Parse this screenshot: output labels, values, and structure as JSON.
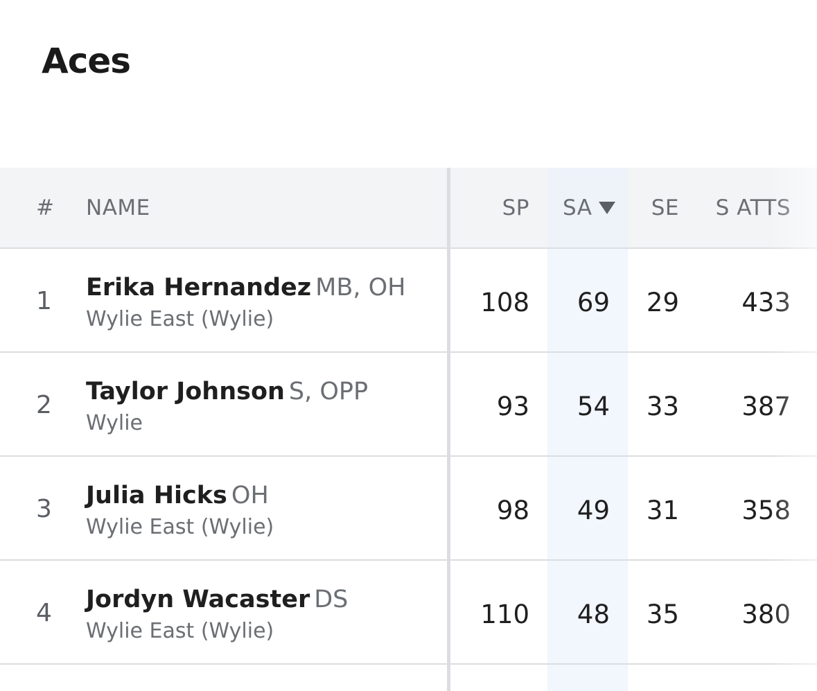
{
  "page": {
    "title": "Aces"
  },
  "table": {
    "columns": {
      "rank": "#",
      "name": "NAME",
      "sp": "SP",
      "sa": "SA",
      "se": "SE",
      "satts": "S ATTS"
    },
    "sorted_by": "SA",
    "sort_direction": "descending",
    "rows": [
      {
        "rank": "1",
        "name": "Erika Hernandez",
        "positions": "MB, OH",
        "school": "Wylie East (Wylie)",
        "sp": "108",
        "sa": "69",
        "se": "29",
        "satts": "433"
      },
      {
        "rank": "2",
        "name": "Taylor Johnson",
        "positions": "S, OPP",
        "school": "Wylie",
        "sp": "93",
        "sa": "54",
        "se": "33",
        "satts": "387"
      },
      {
        "rank": "3",
        "name": "Julia Hicks",
        "positions": "OH",
        "school": "Wylie East (Wylie)",
        "sp": "98",
        "sa": "49",
        "se": "31",
        "satts": "358"
      },
      {
        "rank": "4",
        "name": "Jordyn Wacaster",
        "positions": "DS",
        "school": "Wylie East (Wylie)",
        "sp": "110",
        "sa": "48",
        "se": "35",
        "satts": "380"
      }
    ]
  },
  "colors": {
    "header_bg": "#f3f4f6",
    "sorted_column_bg": "#f2f6fd",
    "divider": "#dcdde0",
    "muted_text": "#6b6e73",
    "primary_text": "#1f1f1f"
  },
  "icons": {
    "sort": "sort-descending-triangle"
  }
}
